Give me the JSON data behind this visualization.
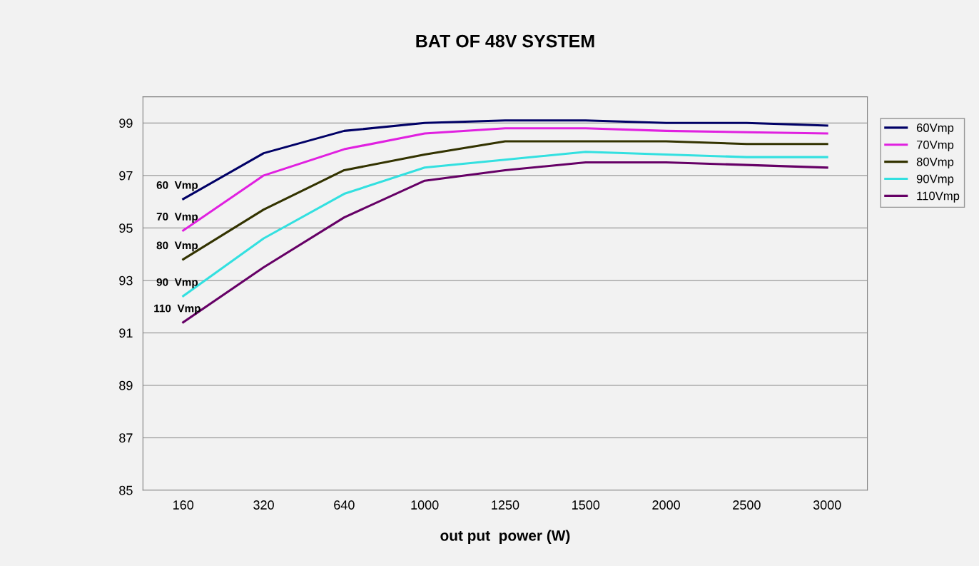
{
  "chart_data": {
    "type": "line",
    "title": "BAT OF 48V SYSTEM",
    "xlabel": "out put  power (W)",
    "categories": [
      "160",
      "320",
      "640",
      "1000",
      "1250",
      "1500",
      "2000",
      "2500",
      "3000"
    ],
    "series": [
      {
        "name": "60Vmp",
        "color": "#000066",
        "values": [
          96.1,
          97.85,
          98.7,
          99.0,
          99.1,
          99.1,
          99.0,
          99.0,
          98.9
        ]
      },
      {
        "name": "70Vmp",
        "color": "#e020e0",
        "values": [
          94.9,
          97.0,
          98.0,
          98.6,
          98.8,
          98.8,
          98.7,
          98.65,
          98.6
        ]
      },
      {
        "name": "80Vmp",
        "color": "#333300",
        "values": [
          93.8,
          95.7,
          97.2,
          97.8,
          98.3,
          98.3,
          98.3,
          98.2,
          98.2
        ]
      },
      {
        "name": "90Vmp",
        "color": "#33e0e0",
        "values": [
          92.4,
          94.6,
          96.3,
          97.3,
          97.6,
          97.9,
          97.8,
          97.7,
          97.7
        ]
      },
      {
        "name": "110Vmp",
        "color": "#660066",
        "values": [
          91.4,
          93.5,
          95.4,
          96.8,
          97.2,
          97.5,
          97.5,
          97.4,
          97.3
        ]
      }
    ],
    "annotations": [
      {
        "text": "60  Vmp",
        "x": "160",
        "y": 96.1
      },
      {
        "text": "70  Vmp",
        "x": "160",
        "y": 94.9
      },
      {
        "text": "80  Vmp",
        "x": "160",
        "y": 93.8
      },
      {
        "text": "90  Vmp",
        "x": "160",
        "y": 92.4
      },
      {
        "text": "110  Vmp",
        "x": "160",
        "y": 91.4
      }
    ],
    "ylim": [
      85,
      100
    ],
    "yticks": [
      85,
      87,
      89,
      91,
      93,
      95,
      97,
      99
    ],
    "grid": "y",
    "legend": "right",
    "marker": "none",
    "line_style": "solid"
  }
}
